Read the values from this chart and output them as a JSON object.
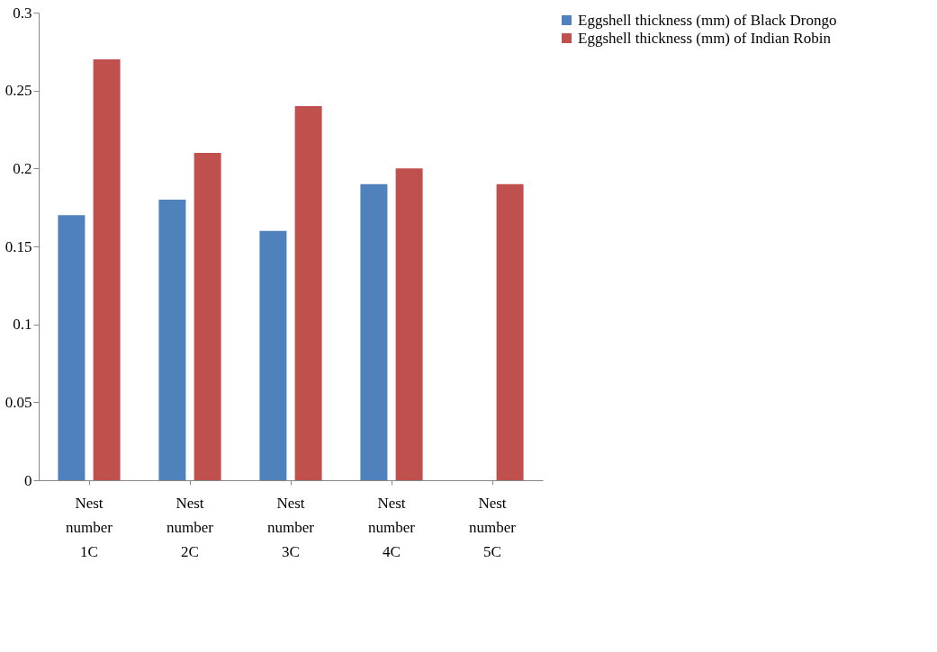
{
  "chart_data": {
    "type": "bar",
    "categories": [
      "Nest number 1C",
      "Nest number 2C",
      "Nest number 3C",
      "Nest number 4C",
      "Nest number 5C"
    ],
    "series": [
      {
        "name": "Eggshell thickness (mm) of Black Drongo",
        "color": "#4f81bd",
        "values": [
          0.17,
          0.18,
          0.16,
          0.19,
          0
        ]
      },
      {
        "name": "Eggshell thickness (mm) of Indian Robin",
        "color": "#c0504d",
        "values": [
          0.27,
          0.21,
          0.24,
          0.2,
          0.19
        ]
      }
    ],
    "ylim": [
      0,
      0.3
    ],
    "yticks": [
      0,
      0.05,
      0.1,
      0.15,
      0.2,
      0.25,
      0.3
    ],
    "grid": false,
    "legend": "right"
  }
}
